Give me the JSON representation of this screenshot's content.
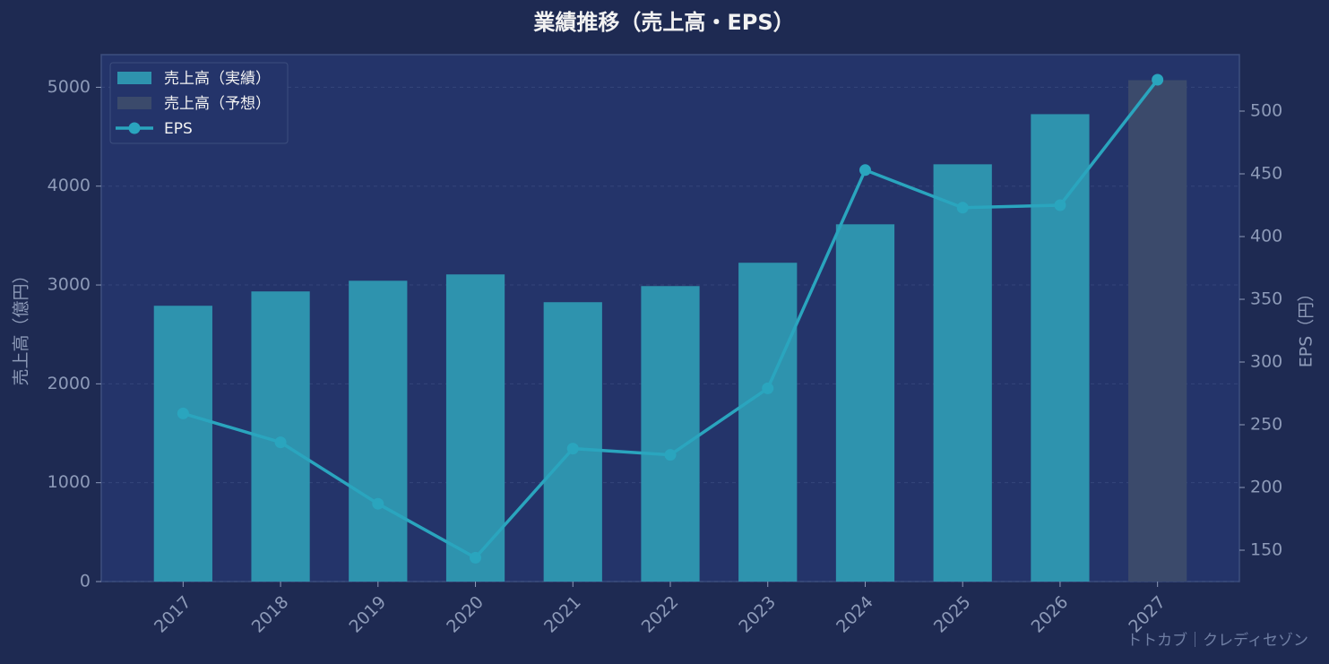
{
  "chart_data": {
    "type": "bar",
    "title": "業績推移（売上高・EPS）",
    "y_label": "売上高（億円）",
    "y2_label": "EPS（円）",
    "watermark": "トトカブ｜クレディセゾン",
    "categories": [
      "2017",
      "2018",
      "2019",
      "2020",
      "2021",
      "2022",
      "2023",
      "2024",
      "2025",
      "2026",
      "2027"
    ],
    "series": [
      {
        "name": "売上高（実績）",
        "type": "bar",
        "color": "#2e93ae",
        "values": [
          2790,
          2935,
          3043,
          3107,
          2826,
          2989,
          3225,
          3614,
          4221,
          4728,
          null
        ]
      },
      {
        "name": "売上高（予想）",
        "type": "bar",
        "color": "#3b4a6b",
        "values": [
          null,
          null,
          null,
          null,
          null,
          null,
          null,
          null,
          null,
          null,
          5072
        ]
      },
      {
        "name": "EPS",
        "type": "line",
        "axis": "y2",
        "color": "#2aa5be",
        "values": [
          259,
          236,
          187,
          144,
          231,
          226,
          279,
          453,
          423,
          425,
          525
        ]
      }
    ],
    "ylim": [
      0,
      5330
    ],
    "yticks": [
      0,
      1000,
      2000,
      3000,
      4000,
      5000
    ],
    "y2lim": [
      125,
      545
    ],
    "y2ticks": [
      150,
      200,
      250,
      300,
      350,
      400,
      450,
      500
    ],
    "grid": true,
    "legend": "upper-left"
  }
}
